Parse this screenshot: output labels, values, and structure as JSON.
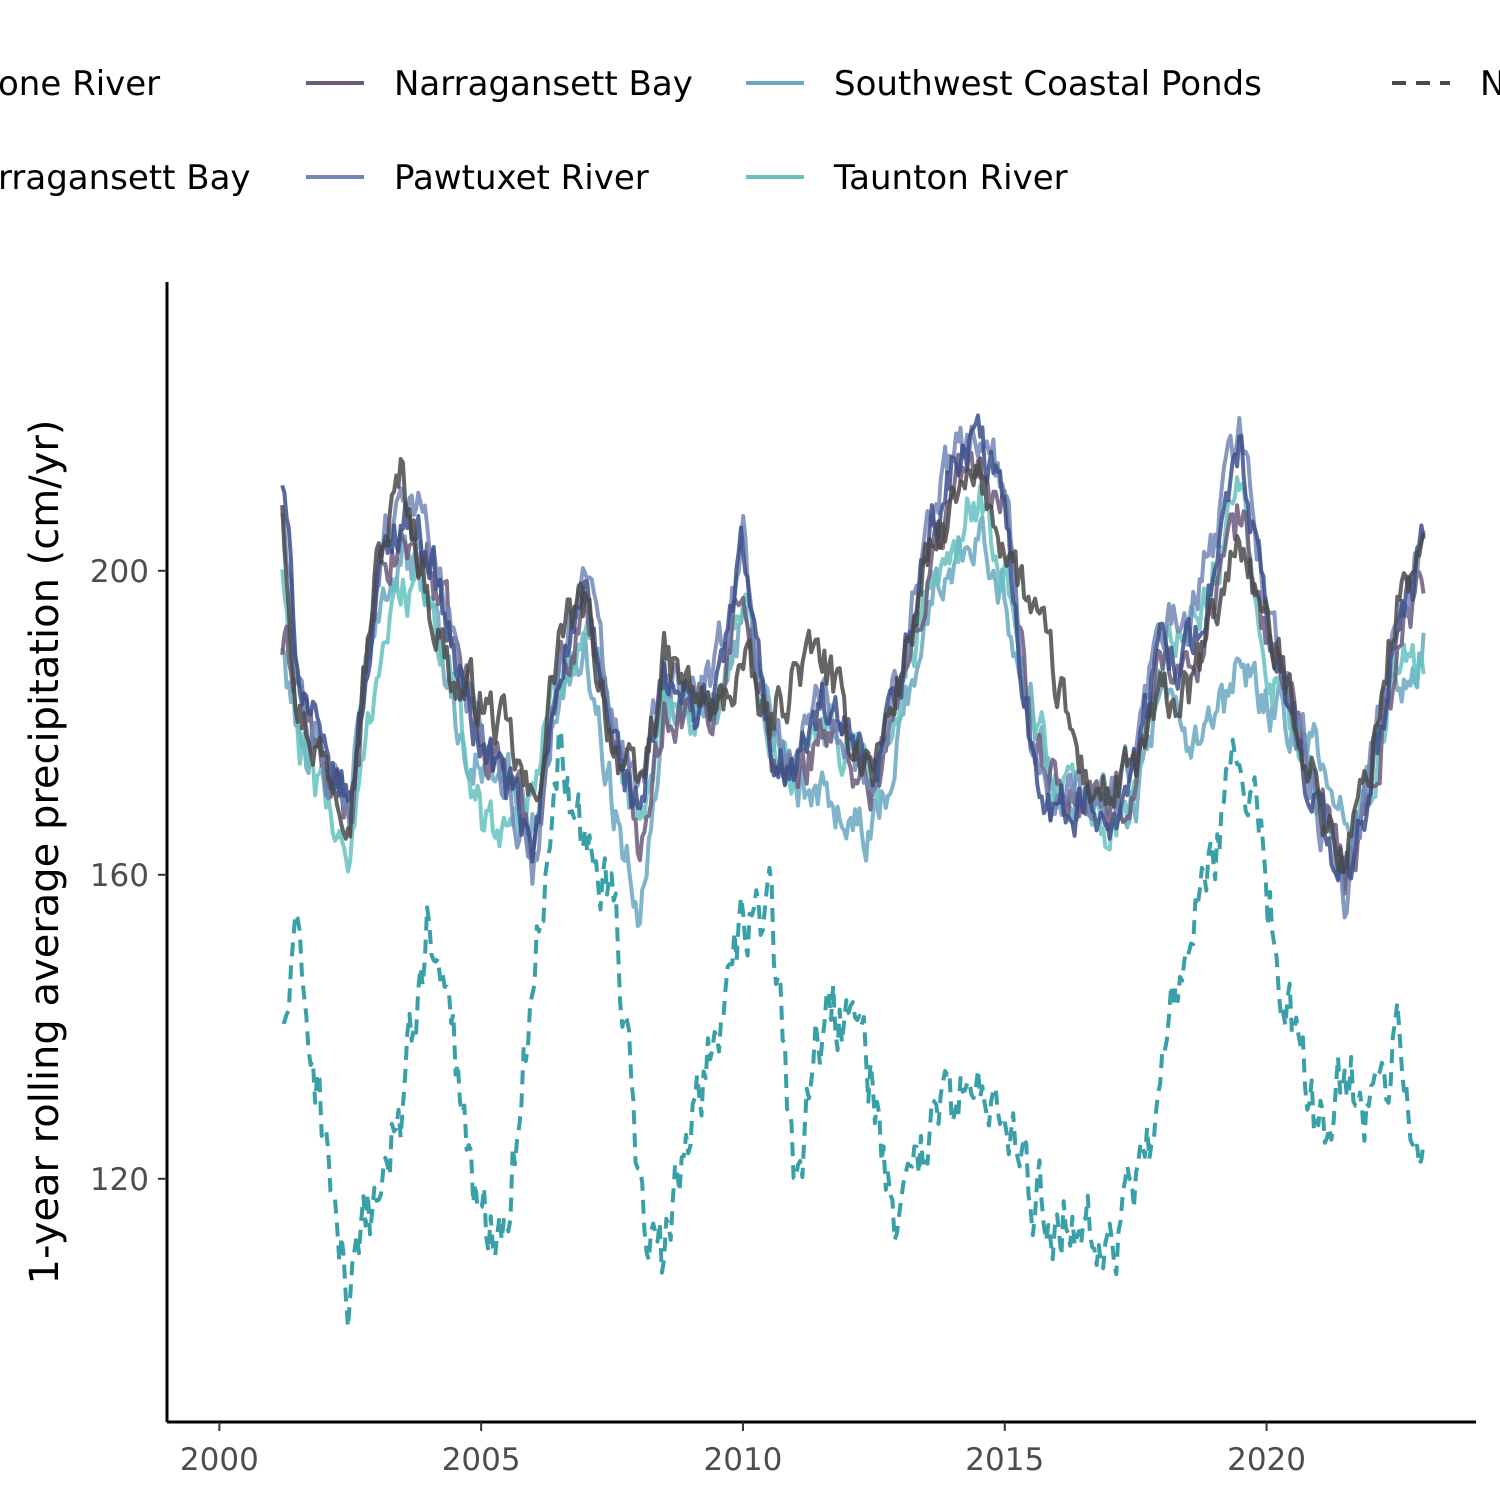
{
  "chart_data": {
    "type": "line",
    "title": "",
    "xlabel": "",
    "ylabel": "1-year rolling average precipitation (cm/yr)",
    "xlim": [
      1999,
      2024
    ],
    "ylim": [
      88,
      238
    ],
    "x_ticks": [
      2000,
      2005,
      2010,
      2015,
      2020
    ],
    "y_ticks": [
      120,
      160,
      200
    ],
    "x_tick_labels": [
      "2000",
      "2005",
      "2010",
      "2015",
      "2020"
    ],
    "y_tick_labels": [
      "120",
      "160",
      "200"
    ],
    "grid": false,
    "legend_position": "top",
    "legend_visible_labels": [
      "one River",
      "Narragansett Bay",
      "Southwest Coastal Ponds",
      "N",
      "rragansett Bay",
      "Pawtuxet River",
      "Taunton River"
    ],
    "x": [
      2001.2,
      2001.5,
      2002.0,
      2002.5,
      2003.0,
      2003.5,
      2004.0,
      2004.5,
      2005.0,
      2005.5,
      2006.0,
      2006.5,
      2007.0,
      2007.5,
      2008.0,
      2008.5,
      2009.0,
      2009.5,
      2010.0,
      2010.5,
      2011.0,
      2011.5,
      2012.0,
      2012.5,
      2013.0,
      2013.5,
      2014.0,
      2014.5,
      2015.0,
      2015.5,
      2016.0,
      2016.5,
      2017.0,
      2017.5,
      2018.0,
      2018.5,
      2019.0,
      2019.5,
      2020.0,
      2020.5,
      2021.0,
      2021.5,
      2022.0,
      2022.5,
      2023.0
    ],
    "series": [
      {
        "key": "s1",
        "color": "#4a4a4a",
        "dashed": false,
        "values": [
          210,
          182,
          175,
          170,
          200,
          213,
          196,
          185,
          183,
          178,
          168,
          192,
          195,
          178,
          170,
          188,
          184,
          181,
          188,
          179,
          187,
          189,
          179,
          174,
          186,
          200,
          208,
          212,
          204,
          195,
          185,
          173,
          170,
          174,
          183,
          183,
          194,
          205,
          192,
          183,
          170,
          161,
          176,
          196,
          203
        ]
      },
      {
        "key": "s2",
        "color": "#6b5b7b",
        "dashed": false,
        "values": [
          190,
          186,
          172,
          168,
          196,
          204,
          201,
          190,
          178,
          174,
          164,
          187,
          196,
          180,
          165,
          182,
          181,
          183,
          200,
          176,
          172,
          180,
          176,
          172,
          183,
          199,
          210,
          215,
          206,
          178,
          170,
          170,
          167,
          172,
          190,
          185,
          197,
          208,
          191,
          183,
          170,
          159,
          170,
          190,
          200
        ]
      },
      {
        "key": "s3",
        "color": "#3d4f8a",
        "dashed": false,
        "values": [
          212,
          188,
          174,
          170,
          198,
          208,
          203,
          188,
          177,
          172,
          162,
          189,
          195,
          178,
          168,
          185,
          182,
          184,
          203,
          177,
          174,
          182,
          177,
          171,
          185,
          203,
          213,
          217,
          208,
          177,
          168,
          169,
          168,
          174,
          191,
          189,
          200,
          216,
          192,
          181,
          168,
          158,
          172,
          192,
          203
        ]
      },
      {
        "key": "s4",
        "color": "#7286b6",
        "dashed": false,
        "values": [
          208,
          185,
          173,
          169,
          200,
          212,
          205,
          190,
          179,
          173,
          160,
          190,
          200,
          180,
          170,
          186,
          184,
          186,
          205,
          178,
          176,
          184,
          178,
          172,
          187,
          206,
          214,
          219,
          210,
          178,
          169,
          170,
          169,
          176,
          193,
          192,
          204,
          220,
          196,
          182,
          168,
          157,
          174,
          194,
          204
        ]
      },
      {
        "key": "s5",
        "color": "#69a7c2",
        "dashed": false,
        "values": [
          190,
          180,
          172,
          170,
          196,
          202,
          198,
          181,
          174,
          172,
          168,
          184,
          190,
          170,
          156,
          183,
          182,
          183,
          194,
          180,
          170,
          172,
          168,
          165,
          180,
          193,
          202,
          207,
          197,
          182,
          173,
          170,
          170,
          171,
          183,
          176,
          178,
          187,
          182,
          179,
          175,
          165,
          176,
          185,
          190
        ]
      },
      {
        "key": "s6",
        "color": "#66c2c0",
        "dashed": false,
        "values": [
          200,
          177,
          170,
          162,
          188,
          198,
          196,
          183,
          168,
          166,
          172,
          186,
          194,
          175,
          166,
          182,
          182,
          184,
          196,
          178,
          172,
          180,
          176,
          170,
          183,
          198,
          204,
          210,
          200,
          182,
          172,
          170,
          166,
          172,
          189,
          190,
          200,
          210,
          188,
          180,
          170,
          160,
          172,
          188,
          186
        ]
      },
      {
        "key": "s7",
        "color": "#3aa0a8",
        "dashed": true,
        "values": [
          140,
          150,
          126,
          102,
          118,
          130,
          154,
          136,
          112,
          118,
          146,
          180,
          164,
          160,
          118,
          108,
          130,
          140,
          152,
          156,
          120,
          140,
          142,
          132,
          110,
          126,
          128,
          134,
          126,
          118,
          116,
          116,
          112,
          116,
          134,
          150,
          160,
          180,
          158,
          140,
          124,
          136,
          128,
          138,
          126
        ]
      }
    ]
  }
}
